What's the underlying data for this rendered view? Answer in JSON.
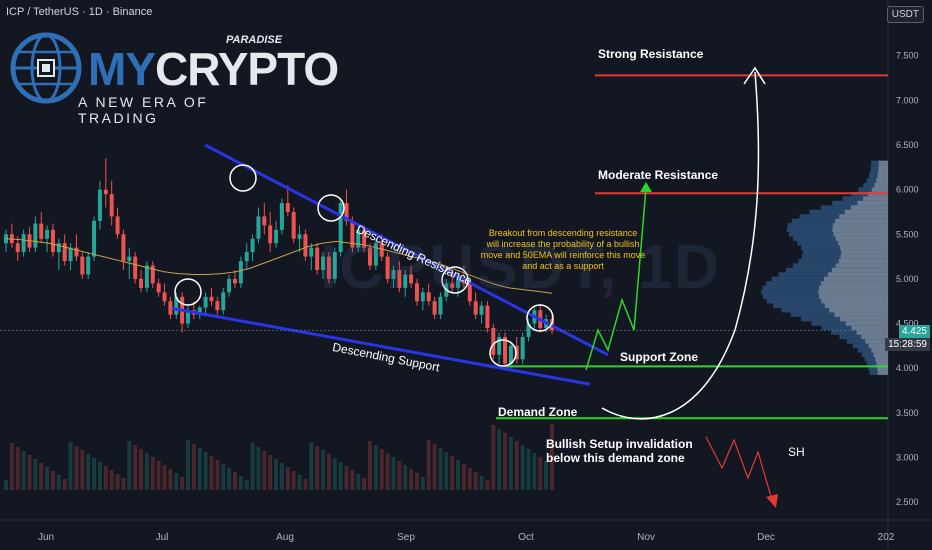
{
  "header": {
    "title": "ICP / TetherUS · 1D · Binance",
    "currency_button": "USDT"
  },
  "logo": {
    "brand_prefix": "MY",
    "brand_suffix": "CRYPTO",
    "brand_super": "PARADISE",
    "tagline": "A NEW ERA OF TRADING"
  },
  "watermark": "ICPUSDT, 1D",
  "price_tags": {
    "current": "4.425",
    "countdown": "15:28:59"
  },
  "annotations": {
    "strong_resistance": "Strong Resistance",
    "moderate_resistance": "Moderate Resistance",
    "support_zone": "Support Zone",
    "demand_zone": "Demand Zone",
    "invalidation": [
      "Bullish Setup invalidation",
      "below this demand zone"
    ],
    "sh": "SH",
    "descending_resistance": "Descending Resistance",
    "descending_support": "Descending Support",
    "breakout_note": [
      "Breakout from descending resistance",
      "will increase the probability of a bullish",
      "move and 50EMA will reinforce this move",
      "and act as a support"
    ]
  },
  "colors": {
    "background": "#131722",
    "up_candle": "#26a69a",
    "down_candle": "#ef5350",
    "ema": "#c8a24a",
    "trendline": "#2a35e8",
    "resistance": "#e53935",
    "support": "#2bd62b",
    "note": "#f0c419",
    "volume_profile": "#2962ff"
  },
  "chart_data": {
    "type": "candlestick",
    "symbol": "ICP / TetherUS",
    "timeframe": "1D",
    "exchange": "Binance",
    "x_ticks": [
      "Jun",
      "Jul",
      "Aug",
      "Sep",
      "Oct",
      "Nov",
      "Dec",
      "202"
    ],
    "y_ticks": [
      "7.500",
      "7.000",
      "6.500",
      "6.000",
      "5.500",
      "5.000",
      "4.500",
      "4.000",
      "3.500",
      "3.000",
      "2.500"
    ],
    "ylim": [
      2.3,
      7.9
    ],
    "last_price": 4.425,
    "levels": [
      {
        "name": "Strong Resistance",
        "price": 7.28
      },
      {
        "name": "Moderate Resistance",
        "price": 5.96
      },
      {
        "name": "Support Zone",
        "price": 4.02
      },
      {
        "name": "Demand Zone",
        "price": 3.44
      }
    ],
    "candles": [
      [
        5.4,
        5.55,
        5.3,
        5.5
      ],
      [
        5.5,
        5.62,
        5.35,
        5.4
      ],
      [
        5.4,
        5.48,
        5.2,
        5.3
      ],
      [
        5.3,
        5.55,
        5.25,
        5.5
      ],
      [
        5.5,
        5.58,
        5.3,
        5.35
      ],
      [
        5.35,
        5.7,
        5.3,
        5.62
      ],
      [
        5.62,
        5.75,
        5.4,
        5.45
      ],
      [
        5.45,
        5.6,
        5.3,
        5.55
      ],
      [
        5.55,
        5.62,
        5.25,
        5.3
      ],
      [
        5.3,
        5.45,
        5.1,
        5.4
      ],
      [
        5.4,
        5.5,
        5.15,
        5.2
      ],
      [
        5.2,
        5.4,
        5.1,
        5.35
      ],
      [
        5.35,
        5.5,
        5.2,
        5.25
      ],
      [
        5.25,
        5.3,
        5.0,
        5.05
      ],
      [
        5.05,
        5.3,
        5.0,
        5.25
      ],
      [
        5.25,
        5.7,
        5.2,
        5.65
      ],
      [
        5.65,
        6.1,
        5.55,
        6.0
      ],
      [
        6.0,
        6.35,
        5.8,
        5.95
      ],
      [
        5.95,
        6.1,
        5.6,
        5.7
      ],
      [
        5.7,
        5.8,
        5.45,
        5.5
      ],
      [
        5.5,
        5.55,
        5.1,
        5.2
      ],
      [
        5.2,
        5.35,
        5.0,
        5.25
      ],
      [
        5.25,
        5.3,
        4.95,
        5.0
      ],
      [
        5.0,
        5.1,
        4.85,
        4.9
      ],
      [
        4.9,
        5.2,
        4.85,
        5.15
      ],
      [
        5.15,
        5.2,
        4.9,
        4.95
      ],
      [
        4.95,
        5.0,
        4.8,
        4.85
      ],
      [
        4.85,
        4.95,
        4.7,
        4.75
      ],
      [
        4.75,
        4.8,
        4.55,
        4.6
      ],
      [
        4.6,
        4.85,
        4.55,
        4.8
      ],
      [
        4.8,
        4.85,
        4.4,
        4.5
      ],
      [
        4.5,
        4.7,
        4.45,
        4.65
      ],
      [
        4.65,
        4.75,
        4.55,
        4.6
      ],
      [
        4.6,
        4.7,
        4.55,
        4.68
      ],
      [
        4.68,
        4.85,
        4.6,
        4.8
      ],
      [
        4.8,
        4.9,
        4.7,
        4.75
      ],
      [
        4.75,
        4.8,
        4.6,
        4.65
      ],
      [
        4.65,
        4.9,
        4.6,
        4.85
      ],
      [
        4.85,
        5.05,
        4.8,
        5.0
      ],
      [
        5.0,
        5.1,
        4.9,
        4.95
      ],
      [
        4.95,
        5.25,
        4.9,
        5.2
      ],
      [
        5.2,
        5.4,
        5.1,
        5.3
      ],
      [
        5.3,
        5.5,
        5.2,
        5.45
      ],
      [
        5.45,
        5.8,
        5.4,
        5.7
      ],
      [
        5.7,
        5.85,
        5.5,
        5.6
      ],
      [
        5.6,
        5.75,
        5.3,
        5.4
      ],
      [
        5.4,
        5.65,
        5.35,
        5.55
      ],
      [
        5.55,
        5.9,
        5.5,
        5.85
      ],
      [
        5.85,
        6.05,
        5.7,
        5.75
      ],
      [
        5.75,
        5.8,
        5.4,
        5.45
      ],
      [
        5.45,
        5.6,
        5.3,
        5.5
      ],
      [
        5.5,
        5.55,
        5.2,
        5.25
      ],
      [
        5.25,
        5.4,
        5.1,
        5.35
      ],
      [
        5.35,
        5.4,
        5.05,
        5.1
      ],
      [
        5.1,
        5.3,
        5.0,
        5.25
      ],
      [
        5.25,
        5.3,
        4.95,
        5.0
      ],
      [
        5.0,
        5.35,
        4.95,
        5.3
      ],
      [
        5.3,
        5.9,
        5.25,
        5.85
      ],
      [
        5.85,
        6.0,
        5.6,
        5.65
      ],
      [
        5.65,
        5.7,
        5.3,
        5.35
      ],
      [
        5.35,
        5.6,
        5.3,
        5.55
      ],
      [
        5.55,
        5.6,
        5.3,
        5.35
      ],
      [
        5.35,
        5.4,
        5.1,
        5.15
      ],
      [
        5.15,
        5.45,
        5.1,
        5.4
      ],
      [
        5.4,
        5.5,
        5.2,
        5.25
      ],
      [
        5.25,
        5.3,
        4.95,
        5.0
      ],
      [
        5.0,
        5.15,
        4.9,
        5.1
      ],
      [
        5.1,
        5.2,
        4.85,
        4.9
      ],
      [
        4.9,
        5.1,
        4.8,
        5.05
      ],
      [
        5.05,
        5.15,
        4.9,
        4.95
      ],
      [
        4.95,
        5.0,
        4.7,
        4.75
      ],
      [
        4.75,
        4.9,
        4.65,
        4.85
      ],
      [
        4.85,
        4.95,
        4.7,
        4.75
      ],
      [
        4.75,
        4.8,
        4.55,
        4.6
      ],
      [
        4.6,
        4.85,
        4.55,
        4.8
      ],
      [
        4.8,
        5.0,
        4.75,
        4.95
      ],
      [
        4.95,
        5.1,
        4.85,
        4.9
      ],
      [
        4.9,
        5.05,
        4.8,
        5.0
      ],
      [
        5.0,
        5.15,
        4.9,
        4.95
      ],
      [
        4.95,
        5.0,
        4.7,
        4.75
      ],
      [
        4.75,
        4.85,
        4.55,
        4.6
      ],
      [
        4.6,
        4.75,
        4.5,
        4.7
      ],
      [
        4.7,
        4.75,
        4.4,
        4.45
      ],
      [
        4.45,
        4.5,
        4.1,
        4.15
      ],
      [
        4.15,
        4.4,
        4.05,
        4.35
      ],
      [
        4.35,
        4.4,
        4.0,
        4.05
      ],
      [
        4.05,
        4.3,
        4.0,
        4.25
      ],
      [
        4.25,
        4.35,
        4.05,
        4.1
      ],
      [
        4.1,
        4.4,
        4.05,
        4.35
      ],
      [
        4.35,
        4.55,
        4.3,
        4.5
      ],
      [
        4.5,
        4.7,
        4.45,
        4.65
      ],
      [
        4.65,
        4.72,
        4.4,
        4.45
      ],
      [
        4.45,
        4.6,
        4.4,
        4.55
      ],
      [
        4.55,
        4.6,
        4.38,
        4.425
      ]
    ],
    "ema50": [
      5.45,
      5.44,
      5.42,
      5.4,
      5.36,
      5.32,
      5.28,
      5.24,
      5.2,
      5.16,
      5.12,
      5.08,
      5.06,
      5.05,
      5.05,
      5.06,
      5.08,
      5.12,
      5.18,
      5.24,
      5.3,
      5.36,
      5.4,
      5.42,
      5.4,
      5.38,
      5.34,
      5.3,
      5.26,
      5.22,
      5.18,
      5.12,
      5.06,
      5.0,
      4.94,
      4.9,
      4.88,
      4.86,
      4.84
    ],
    "descending_resistance": [
      [
        5.43,
        6.5
      ],
      [
        0.66,
        4.45
      ]
    ],
    "descending_support": [
      [
        0.185,
        4.67
      ],
      [
        0.632,
        3.82
      ]
    ]
  }
}
